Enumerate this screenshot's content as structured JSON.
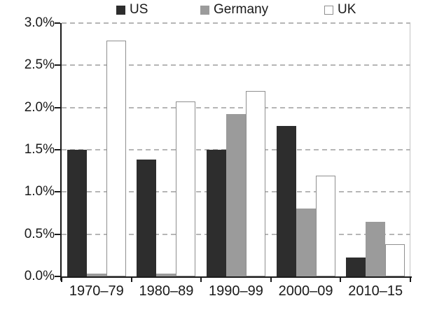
{
  "chart_data": {
    "type": "bar",
    "title": "",
    "xlabel": "",
    "ylabel": "",
    "ylim": [
      0,
      3
    ],
    "grid": "dashed-horizontal",
    "legend_position": "top",
    "categories": [
      "1970–79",
      "1980–89",
      "1990–99",
      "2000–09",
      "2010–15"
    ],
    "series": [
      {
        "name": "US",
        "values": [
          1.5,
          1.38,
          1.5,
          1.78,
          0.22
        ],
        "fill": "#2d2d2d",
        "border": "#2d2d2d"
      },
      {
        "name": "Germany",
        "values": [
          0.03,
          0.03,
          1.92,
          0.8,
          0.65
        ],
        "fill": "#9b9b9b",
        "border": "#9b9b9b"
      },
      {
        "name": "UK",
        "values": [
          2.79,
          2.07,
          2.2,
          1.19,
          0.38
        ],
        "fill": "#ffffff",
        "border": "#8f8f8f"
      }
    ],
    "yticks": [
      {
        "value": 0.0,
        "label": "0.0%"
      },
      {
        "value": 0.5,
        "label": "0.5%"
      },
      {
        "value": 1.0,
        "label": "1.0%"
      },
      {
        "value": 1.5,
        "label": "1.5%"
      },
      {
        "value": 2.0,
        "label": "2.0%"
      },
      {
        "value": 2.5,
        "label": "2.5%"
      },
      {
        "value": 3.0,
        "label": "3.0%"
      }
    ],
    "colors": {
      "axis": "#1a1a1a",
      "gridline": "#b6b6b6",
      "plot_right_border": "#c3c3c3",
      "text": "#1a1a1a",
      "background": "#ffffff"
    }
  }
}
